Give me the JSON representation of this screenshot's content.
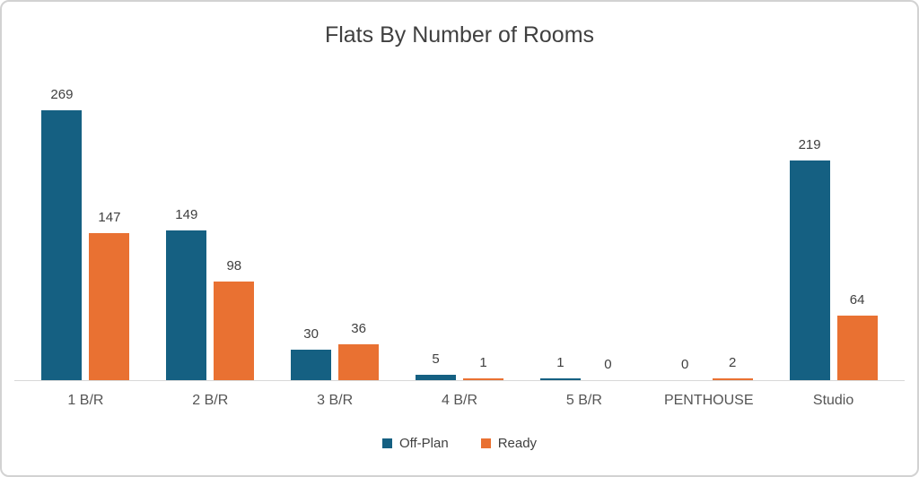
{
  "chart_data": {
    "type": "bar",
    "title": "Flats By Number of Rooms",
    "categories": [
      "1 B/R",
      "2 B/R",
      "3 B/R",
      "4 B/R",
      "5 B/R",
      "PENTHOUSE",
      "Studio"
    ],
    "series": [
      {
        "name": "Off-Plan",
        "color": "#156082",
        "values": [
          269,
          149,
          30,
          5,
          1,
          0,
          219
        ]
      },
      {
        "name": "Ready",
        "color": "#E97132",
        "values": [
          147,
          98,
          36,
          1,
          0,
          2,
          64
        ]
      }
    ],
    "value_labels": true,
    "legend_position": "bottom",
    "grid": false,
    "y_axis_visible": false,
    "ylim": [
      0,
      300
    ]
  }
}
